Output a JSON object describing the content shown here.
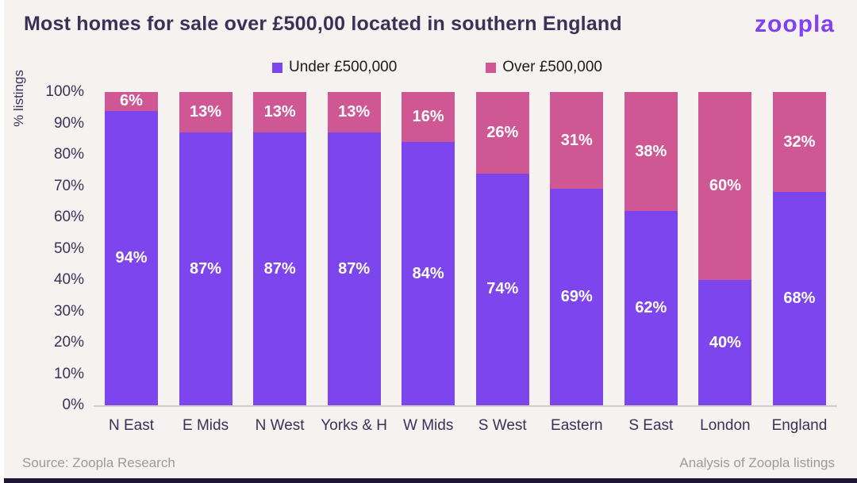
{
  "page": {
    "background": "#F6F2EF",
    "accent_purple": "#7C45EE",
    "accent_pink": "#CF5794",
    "bottom_strip_color": "#1E1737"
  },
  "header": {
    "title": "Most homes for sale over £500,00 located in southern England",
    "logo": "zoopla"
  },
  "footer": {
    "source": "Source: Zoopla Research",
    "analysis": "Analysis of Zoopla listings"
  },
  "chart_data": {
    "type": "bar",
    "stacked": true,
    "title": "Most homes for sale over £500,00 located in southern England",
    "categories": [
      "N East",
      "E Mids",
      "N West",
      "Yorks & H",
      "W Mids",
      "S West",
      "Eastern",
      "S East",
      "London",
      "England"
    ],
    "series": [
      {
        "name": "Under £500,000",
        "color": "#7C45EE",
        "values": [
          94,
          87,
          87,
          87,
          84,
          74,
          69,
          62,
          40,
          68
        ]
      },
      {
        "name": "Over £500,000",
        "color": "#CF5794",
        "values": [
          6,
          13,
          13,
          13,
          16,
          26,
          31,
          38,
          60,
          32
        ]
      }
    ],
    "xlabel": "",
    "ylabel": "% listings",
    "ylim": [
      0,
      100
    ],
    "yticks": [
      "0%",
      "10%",
      "20%",
      "30%",
      "40%",
      "50%",
      "60%",
      "70%",
      "80%",
      "90%",
      "100%"
    ],
    "legend_position": "top",
    "grid": false,
    "data_label_suffix": "%"
  }
}
